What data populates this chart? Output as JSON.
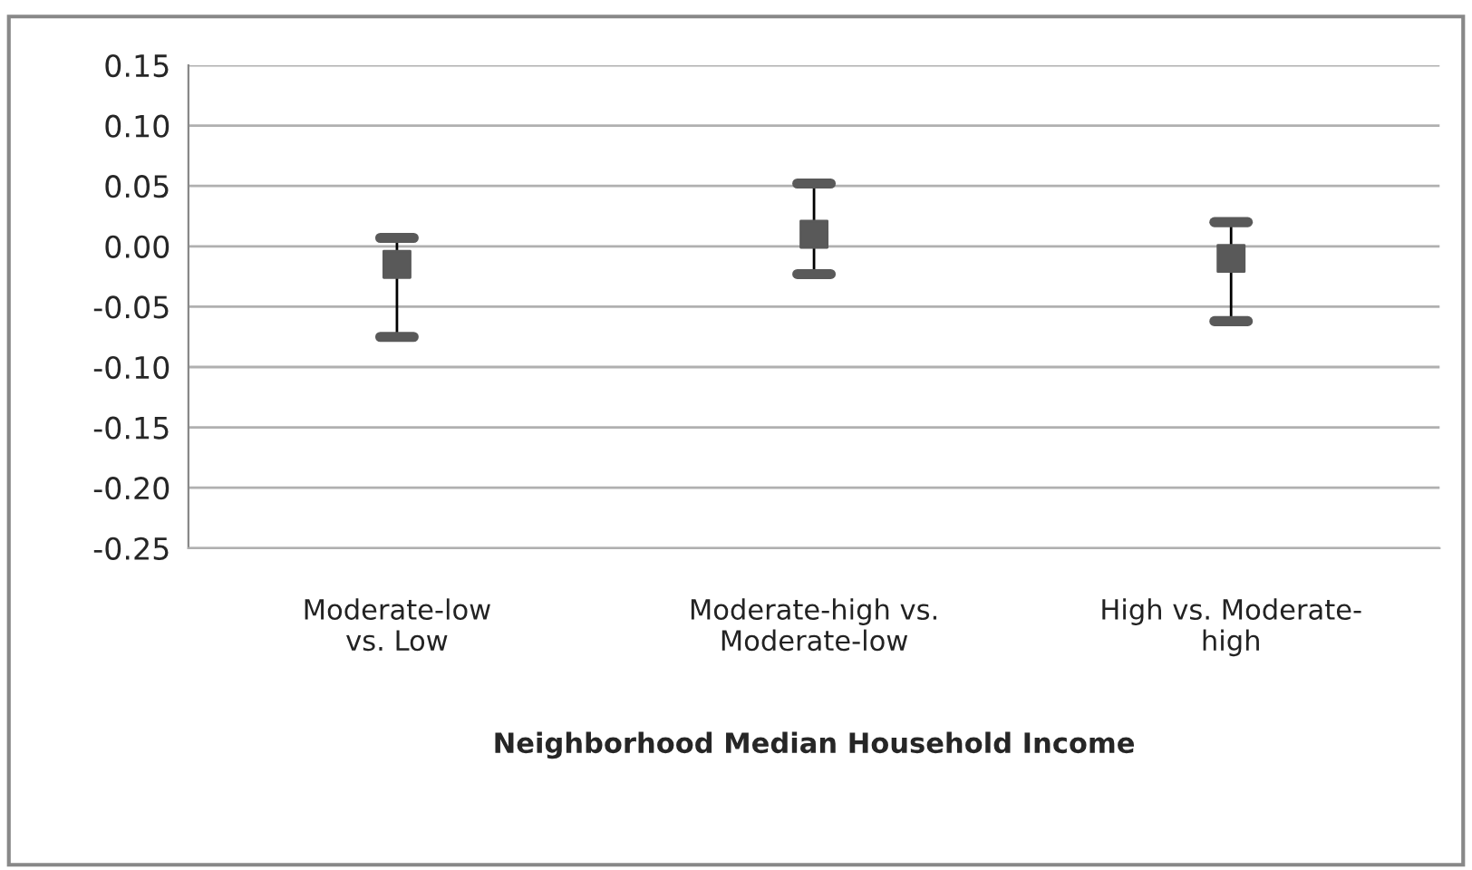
{
  "chart_data": {
    "type": "scatter",
    "xlabel": "Neighborhood Median Household Income",
    "categories": [
      "Moderate-low\nvs. Low",
      "Moderate-high vs.\nModerate-low",
      "High vs. Moderate-\nhigh"
    ],
    "series": [
      {
        "color": "#595959",
        "values": [
          -0.015,
          0.01,
          -0.01
        ],
        "errors": [
          [
            -0.075,
            0.007
          ],
          [
            -0.023,
            0.052
          ],
          [
            -0.062,
            0.02
          ]
        ]
      }
    ],
    "ylim": [
      -0.25,
      0.15
    ],
    "yticks": [
      {
        "value": -0.25,
        "label": "-0.25"
      },
      {
        "value": -0.2,
        "label": "-0.20"
      },
      {
        "value": -0.15,
        "label": "-0.15"
      },
      {
        "value": -0.1,
        "label": "-0.10"
      },
      {
        "value": -0.05,
        "label": "-0.05"
      },
      {
        "value": 0,
        "label": "0.00"
      },
      {
        "value": 0.05,
        "label": "0.05"
      },
      {
        "value": 0.1,
        "label": "0.10"
      },
      {
        "value": 0.15,
        "label": "0.15"
      }
    ],
    "grid": "y",
    "marker": "square"
  }
}
